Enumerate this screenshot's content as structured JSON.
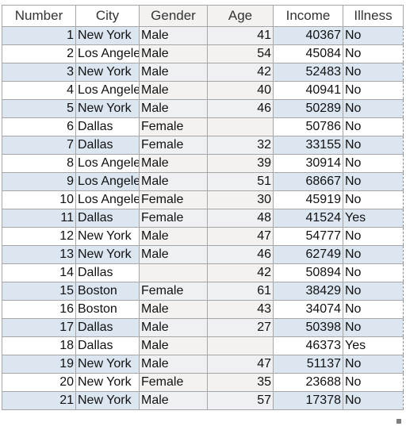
{
  "columns": [
    "Number",
    "City",
    "Gender",
    "Age",
    "Income",
    "Illness"
  ],
  "rows": [
    [
      "1",
      "New York",
      "Male",
      "41",
      "40367",
      "No"
    ],
    [
      "2",
      "Los Angeles",
      "Male",
      "54",
      "45084",
      "No"
    ],
    [
      "3",
      "New York",
      "Male",
      "42",
      "52483",
      "No"
    ],
    [
      "4",
      "Los Angeles",
      "Male",
      "40",
      "40941",
      "No"
    ],
    [
      "5",
      "New York",
      "Male",
      "46",
      "50289",
      "No"
    ],
    [
      "6",
      "Dallas",
      "Female",
      "",
      "50786",
      "No"
    ],
    [
      "7",
      "Dallas",
      "Female",
      "32",
      "33155",
      "No"
    ],
    [
      "8",
      "Los Angeles",
      "Male",
      "39",
      "30914",
      "No"
    ],
    [
      "9",
      "Los Angeles",
      "Male",
      "51",
      "68667",
      "No"
    ],
    [
      "10",
      "Los Angeles",
      "Female",
      "30",
      "45919",
      "No"
    ],
    [
      "11",
      "Dallas",
      "Female",
      "48",
      "41524",
      "Yes"
    ],
    [
      "12",
      "New York",
      "Male",
      "47",
      "54777",
      "No"
    ],
    [
      "13",
      "New York",
      "Male",
      "46",
      "62749",
      "No"
    ],
    [
      "14",
      "Dallas",
      "",
      "42",
      "50894",
      "No"
    ],
    [
      "15",
      "Boston",
      "Female",
      "61",
      "38429",
      "No"
    ],
    [
      "16",
      "Boston",
      "Male",
      "43",
      "34074",
      "No"
    ],
    [
      "17",
      "Dallas",
      "Male",
      "27",
      "50398",
      "No"
    ],
    [
      "18",
      "Dallas",
      "Male",
      "",
      "46373",
      "Yes"
    ],
    [
      "19",
      "New York",
      "Male",
      "47",
      "51137",
      "No"
    ],
    [
      "20",
      "New York",
      "Female",
      "35",
      "23688",
      "No"
    ],
    [
      "21",
      "New York",
      "Male",
      "57",
      "17378",
      "No"
    ]
  ],
  "colors": {
    "band": "#dce6f1",
    "grid": "#a6a6a6"
  }
}
